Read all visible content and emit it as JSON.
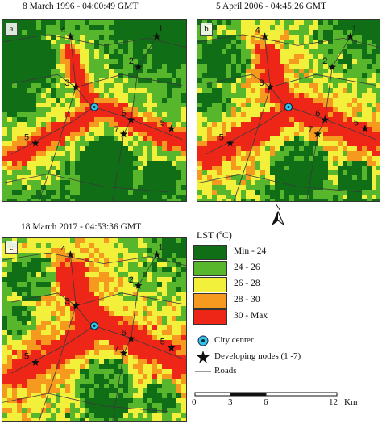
{
  "panels": [
    {
      "title": "8 March 1996 - 04:00:49 GMT",
      "letter": "a"
    },
    {
      "title": "5 April 2006 - 04:45:26 GMT",
      "letter": "b"
    },
    {
      "title": "18 March 2017 - 04:53:36 GMT",
      "letter": "c"
    }
  ],
  "node_labels": [
    "1",
    "2",
    "3",
    "4",
    "5",
    "6",
    "7",
    "5"
  ],
  "north_label": "N",
  "legend": {
    "title": "LST (ºC)",
    "classes": [
      {
        "label": "Min - 24",
        "color": "#0f6e16"
      },
      {
        "label": "24 - 26",
        "color": "#58b62c"
      },
      {
        "label": "26 - 28",
        "color": "#f2f03a"
      },
      {
        "label": "28 - 30",
        "color": "#f59a1e"
      },
      {
        "label": "30 - Max",
        "color": "#ee2618"
      }
    ],
    "city_center": "City center",
    "developing_nodes": "Developing nodes (1 -7)",
    "roads": "Roads"
  },
  "scale_bar": {
    "ticks": [
      "0",
      "3",
      "6",
      "12"
    ],
    "unit": "Km"
  }
}
